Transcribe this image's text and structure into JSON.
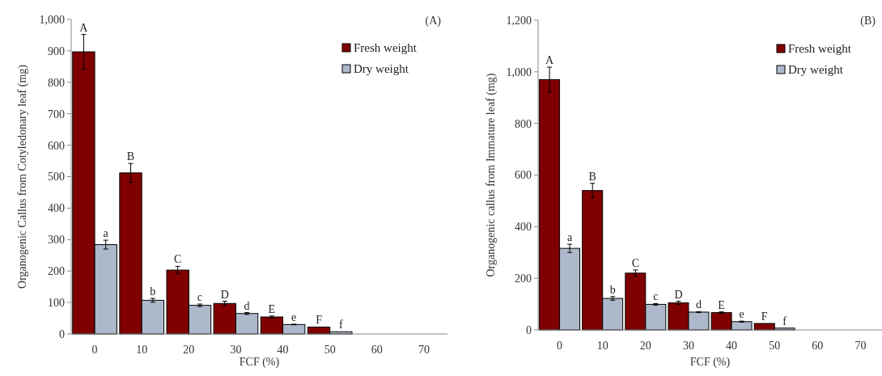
{
  "chart_data": [
    {
      "type": "bar",
      "title": "(A)",
      "xlabel": "FCF (%)",
      "ylabel": "Organogenic Callus from Cotyledonary leaf (mg)",
      "categories": [
        "0",
        "10",
        "20",
        "30",
        "40",
        "50",
        "60",
        "70"
      ],
      "ylim": [
        0,
        1000
      ],
      "yticks": [
        0,
        {
          "value": 100,
          "label": "100"
        },
        200,
        300,
        400,
        500,
        600,
        700,
        800,
        900,
        {
          "value": 1000,
          "label": "1,000"
        }
      ],
      "legend": "top right",
      "series": [
        {
          "name": "Fresh weight",
          "color": "#800000",
          "values": [
            897,
            512,
            203,
            97,
            54,
            22,
            0,
            0
          ],
          "errors": [
            55,
            30,
            12,
            7,
            3,
            null,
            null,
            null
          ],
          "value_labels": [
            "A",
            "B",
            "C",
            "D",
            "E",
            "F",
            null,
            null
          ]
        },
        {
          "name": "Dry weight",
          "color": "#adb9ca",
          "values": [
            284,
            107,
            91,
            65,
            30,
            7,
            0,
            0
          ],
          "errors": [
            14,
            6,
            4,
            3,
            1,
            null,
            null,
            null
          ],
          "value_labels": [
            "a",
            "b",
            "c",
            "d",
            "e",
            "f",
            null,
            null
          ]
        }
      ]
    },
    {
      "type": "bar",
      "title": "(B)",
      "xlabel": "FCF (%)",
      "ylabel": "Organogenic callus from Immature leaf (mg)",
      "categories": [
        "0",
        "10",
        "20",
        "30",
        "40",
        "50",
        "60",
        "70"
      ],
      "ylim": [
        0,
        1200
      ],
      "yticks": [
        0,
        200,
        400,
        600,
        800,
        {
          "value": 1000,
          "label": "1,000"
        },
        {
          "value": 1200,
          "label": "1,200"
        }
      ],
      "legend": "top right",
      "series": [
        {
          "name": "Fresh weight",
          "color": "#800000",
          "values": [
            970,
            540,
            220,
            105,
            67,
            25,
            0,
            0
          ],
          "errors": [
            48,
            28,
            12,
            6,
            3,
            null,
            null,
            null
          ],
          "value_labels": [
            "A",
            "B",
            "C",
            "D",
            "E",
            "F",
            null,
            null
          ]
        },
        {
          "name": "Dry weight",
          "color": "#adb9ca",
          "values": [
            316,
            122,
            99,
            69,
            32,
            7,
            0,
            0
          ],
          "errors": [
            16,
            7,
            3,
            2,
            2,
            null,
            null,
            null
          ],
          "value_labels": [
            "a",
            "b",
            "c",
            "d",
            "e",
            "f",
            null,
            null
          ]
        }
      ]
    }
  ]
}
